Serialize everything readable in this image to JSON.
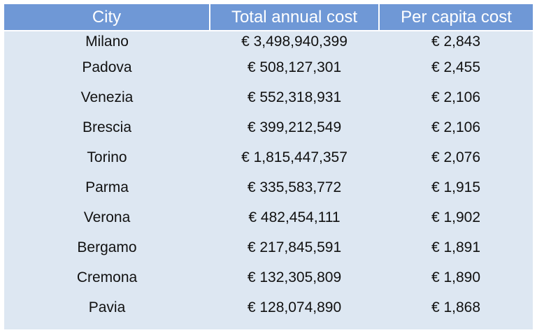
{
  "chart_data": {
    "type": "table",
    "columns": [
      "City",
      "Total annual cost",
      "Per capita cost"
    ],
    "rows": [
      {
        "city": "Milano",
        "total": "€ 3,498,940,399",
        "per_capita": "€ 2,843"
      },
      {
        "city": "Padova",
        "total": "€ 508,127,301",
        "per_capita": "€ 2,455"
      },
      {
        "city": "Venezia",
        "total": "€ 552,318,931",
        "per_capita": "€ 2,106"
      },
      {
        "city": "Brescia",
        "total": "€ 399,212,549",
        "per_capita": "€ 2,106"
      },
      {
        "city": "Torino",
        "total": "€ 1,815,447,357",
        "per_capita": "€ 2,076"
      },
      {
        "city": "Parma",
        "total": "€ 335,583,772",
        "per_capita": "€ 1,915"
      },
      {
        "city": "Verona",
        "total": "€ 482,454,111",
        "per_capita": "€ 1,902"
      },
      {
        "city": "Bergamo",
        "total": "€ 217,845,591",
        "per_capita": "€ 1,891"
      },
      {
        "city": "Cremona",
        "total": "€ 132,305,809",
        "per_capita": "€ 1,890"
      },
      {
        "city": "Pavia",
        "total": "€ 128,074,890",
        "per_capita": "€ 1,868"
      }
    ],
    "numeric": {
      "total_annual_cost_eur": [
        3498940399,
        508127301,
        552318931,
        399212549,
        1815447357,
        335583772,
        482454111,
        217845591,
        132305809,
        128074890
      ],
      "per_capita_cost_eur": [
        2843,
        2455,
        2106,
        2106,
        2076,
        1915,
        1902,
        1891,
        1890,
        1868
      ]
    },
    "colors": {
      "header_background": "#6f98d6",
      "header_text": "#ffffff",
      "body_background": "#dde7f2",
      "body_text": "#111111"
    }
  }
}
